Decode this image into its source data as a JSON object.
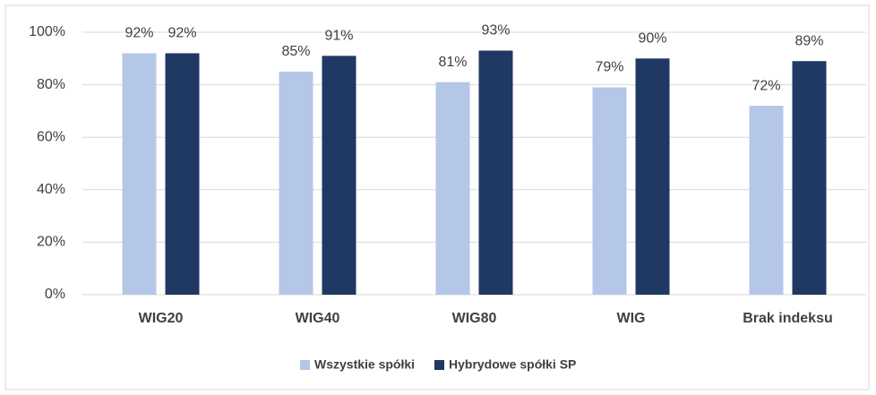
{
  "chart_data": {
    "type": "bar",
    "categories": [
      "WIG20",
      "WIG40",
      "WIG80",
      "WIG",
      "Brak indeksu"
    ],
    "series": [
      {
        "name": "Wszystkie spółki",
        "color": "#b4c7e7",
        "values": [
          92,
          85,
          81,
          79,
          72
        ],
        "value_labels": [
          "92%",
          "85%",
          "81%",
          "79%",
          "72%"
        ]
      },
      {
        "name": "Hybrydowe spółki SP",
        "color": "#1f3864",
        "values": [
          92,
          91,
          93,
          90,
          89
        ],
        "value_labels": [
          "92%",
          "91%",
          "93%",
          "90%",
          "89%"
        ]
      }
    ],
    "ylim": [
      0,
      100
    ],
    "yticks": [
      {
        "value": 0,
        "label": "0%"
      },
      {
        "value": 20,
        "label": "20%"
      },
      {
        "value": 40,
        "label": "40%"
      },
      {
        "value": 60,
        "label": "60%"
      },
      {
        "value": 80,
        "label": "80%"
      },
      {
        "value": 100,
        "label": "100%"
      }
    ],
    "grid": true,
    "legend": "bottom"
  }
}
